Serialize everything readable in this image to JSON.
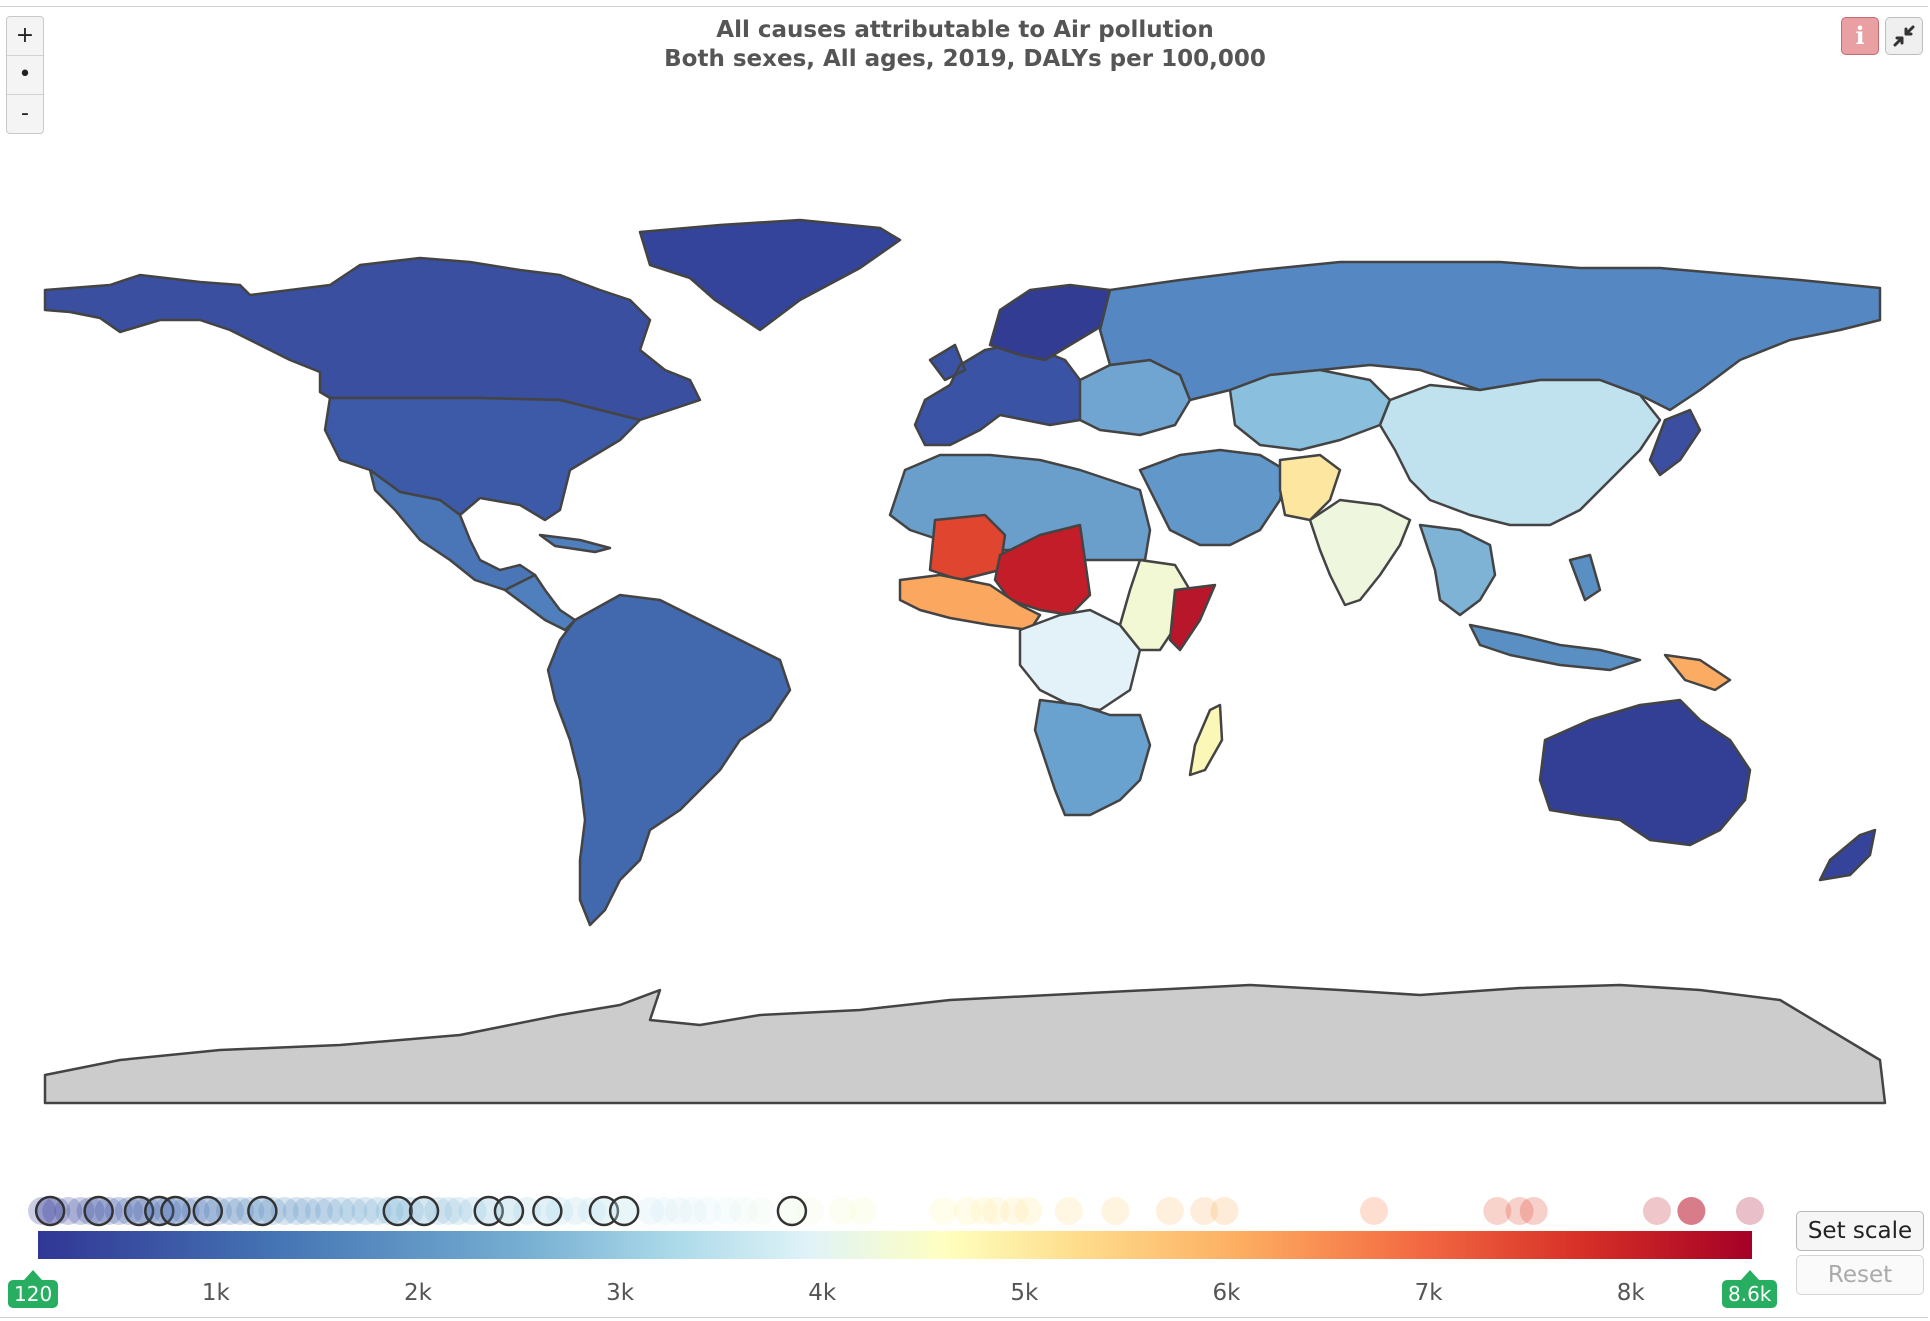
{
  "title": {
    "line1": "All causes attributable to Air pollution",
    "line2": "Both sexes, All ages, 2019, DALYs per 100,000"
  },
  "zoom": {
    "plus": "+",
    "center": "•",
    "minus": "-"
  },
  "buttons": {
    "info_icon": "info-icon",
    "minimize_icon": "minimize-icon",
    "set_scale": "Set scale",
    "reset": "Reset"
  },
  "legend": {
    "min_label": "120",
    "max_label": "8.6k",
    "min": 120,
    "max": 8600,
    "ticks": [
      {
        "label": "1k",
        "value": 1000
      },
      {
        "label": "2k",
        "value": 2000
      },
      {
        "label": "3k",
        "value": 3000
      },
      {
        "label": "4k",
        "value": 4000
      },
      {
        "label": "5k",
        "value": 5000
      },
      {
        "label": "6k",
        "value": 6000
      },
      {
        "label": "7k",
        "value": 7000
      },
      {
        "label": "8k",
        "value": 8000
      }
    ],
    "colors": [
      "#313695",
      "#4575b4",
      "#74add1",
      "#abd9e9",
      "#e0f3f8",
      "#ffffbf",
      "#fee090",
      "#fdae61",
      "#f46d43",
      "#d73027",
      "#a50026"
    ]
  },
  "distribution": {
    "highlighted": [
      180,
      420,
      620,
      720,
      800,
      960,
      1230,
      1900,
      2030,
      2350,
      2450,
      2640,
      2920,
      3020,
      3850
    ],
    "faded": [
      140,
      210,
      270,
      330,
      380,
      470,
      520,
      570,
      660,
      760,
      850,
      900,
      1010,
      1070,
      1120,
      1170,
      1280,
      1340,
      1400,
      1450,
      1510,
      1560,
      1620,
      1680,
      1740,
      1800,
      1860,
      1960,
      2100,
      2150,
      2200,
      2270,
      2540,
      2700,
      2780,
      2860,
      3150,
      3220,
      3290,
      3360,
      3430,
      3530,
      3610,
      3700,
      3940,
      4100,
      4200,
      4600,
      4720,
      4800,
      4860,
      4950,
      5020,
      5220,
      5450,
      5720,
      5890,
      5990,
      6730,
      7340,
      7450,
      7520,
      8130,
      8590
    ],
    "strong": [
      8300
    ]
  },
  "map": {
    "regions": [
      {
        "name": "north-america",
        "color": "#3a4fa0"
      },
      {
        "name": "united-states",
        "color": "#3d5aa8"
      },
      {
        "name": "greenland",
        "color": "#34449a"
      },
      {
        "name": "mexico",
        "color": "#4a76b8"
      },
      {
        "name": "central-america",
        "color": "#4f7fbd"
      },
      {
        "name": "south-america",
        "color": "#4268ae"
      },
      {
        "name": "europe",
        "color": "#3a53a4"
      },
      {
        "name": "scandinavia",
        "color": "#313c92"
      },
      {
        "name": "eastern-europe",
        "color": "#6fa5d0"
      },
      {
        "name": "russia",
        "color": "#5588c2"
      },
      {
        "name": "north-africa",
        "color": "#6a9fcc"
      },
      {
        "name": "sahel",
        "color": "#c31d2a"
      },
      {
        "name": "mali",
        "color": "#e0452f"
      },
      {
        "name": "west-africa",
        "color": "#fba760"
      },
      {
        "name": "central-africa",
        "color": "#e3f2f8"
      },
      {
        "name": "east-africa",
        "color": "#f2f7d4"
      },
      {
        "name": "somalia",
        "color": "#b8172b"
      },
      {
        "name": "southern-africa",
        "color": "#6aa2cf"
      },
      {
        "name": "madagascar",
        "color": "#fbf7b6"
      },
      {
        "name": "middle-east",
        "color": "#6197c9"
      },
      {
        "name": "afghanistan-pakistan",
        "color": "#fde7a0"
      },
      {
        "name": "india",
        "color": "#eef6de"
      },
      {
        "name": "central-asia",
        "color": "#8ac0dd"
      },
      {
        "name": "china",
        "color": "#bfe2ee"
      },
      {
        "name": "southeast-asia",
        "color": "#7eb3d6"
      },
      {
        "name": "japan",
        "color": "#3c4ea0"
      },
      {
        "name": "indonesia",
        "color": "#5a8fc4"
      },
      {
        "name": "papua-new-guinea",
        "color": "#fcac62"
      },
      {
        "name": "australia",
        "color": "#323f95"
      },
      {
        "name": "new-zealand",
        "color": "#35449a"
      },
      {
        "name": "antarctica",
        "color": "#cccccc"
      }
    ]
  }
}
